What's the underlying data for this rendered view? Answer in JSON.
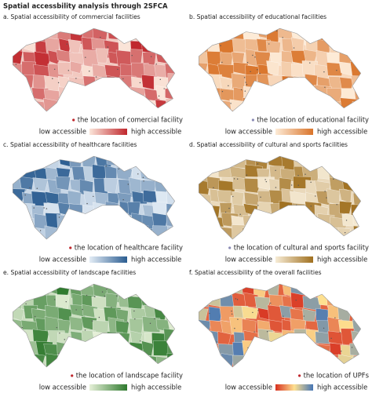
{
  "title": "Spatial accessbility analysis through 2SFCA",
  "panels": [
    {
      "title": "a. Spatial accessibility of commercial facilities",
      "point_label": "the location of comercial facility",
      "low_label": "low accessible",
      "high_label": "high accessible",
      "colors": [
        "#fbe6da",
        "#c0272d"
      ],
      "point_color": "#c0272d"
    },
    {
      "title": "b. Spatial accessibility of educational facilities",
      "point_label": "the location of educational facility",
      "low_label": "low accessible",
      "high_label": "high accessible",
      "colors": [
        "#fdebd7",
        "#d9742a"
      ],
      "point_color": "#8a8ab5"
    },
    {
      "title": "c. Spatial accessibility of healthcare facilities",
      "point_label": "the location of healthcare facility",
      "low_label": "low accessible",
      "high_label": "high accessible",
      "colors": [
        "#e4edf6",
        "#2b5d91"
      ],
      "point_color": "#c0272d"
    },
    {
      "title": "d. Spatial accessibility of cultural and sports facilities",
      "point_label": "the location of cultural and sports facility",
      "low_label": "low accessible",
      "high_label": "high accessible",
      "colors": [
        "#f7ecd6",
        "#a0701f"
      ],
      "point_color": "#8a8ab5"
    },
    {
      "title": "e. Spatial accessibility of landscape facilities",
      "point_label": "the location of landscape facility",
      "low_label": "low accessible",
      "high_label": "high accessible",
      "colors": [
        "#e6f0d8",
        "#2f7a2e"
      ],
      "point_color": "#c0272d"
    },
    {
      "title": "f. Spatial accessibility of the overall facilities",
      "point_label": "the location of UPFs",
      "low_label": "low accessible",
      "high_label": "high accessible",
      "colors": [
        "#d7301f",
        "#fee090",
        "#4575b4"
      ],
      "point_color": "#c0272d"
    }
  ]
}
